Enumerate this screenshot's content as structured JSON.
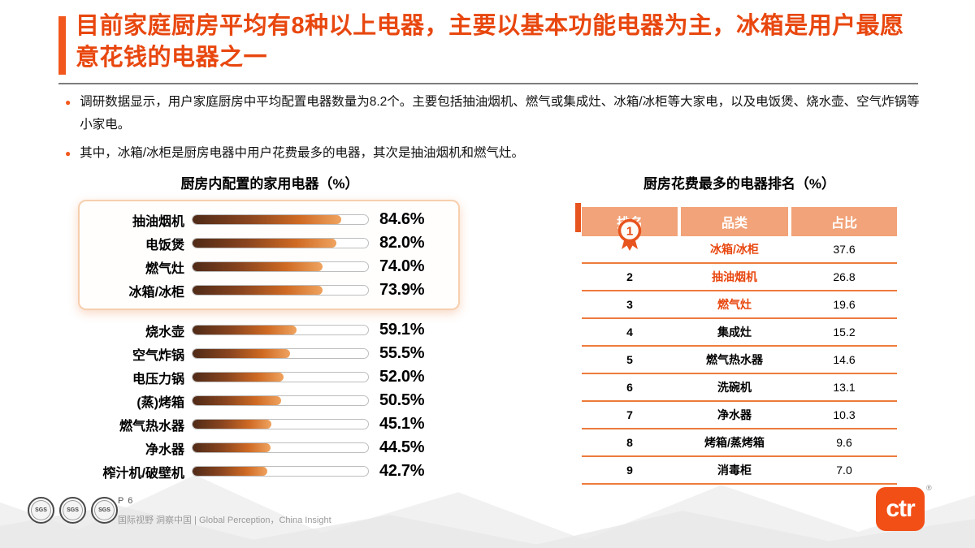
{
  "colors": {
    "accent_orange": "#F2581E",
    "title_color": "#E8470F",
    "table_header_bg": "#F2A379",
    "table_row_border": "#ED7B3C",
    "bar_gradient_start": "#4F2A17",
    "bar_gradient_end": "#EFA35F"
  },
  "header": {
    "title": "目前家庭厨房平均有8种以上电器，主要以基本功能电器为主，冰箱是用户最愿意花钱的电器之一"
  },
  "bullets": [
    "调研数据显示，用户家庭厨房中平均配置电器数量为8.2个。主要包括抽油烟机、燃气或集成灶、冰箱/冰柜等大家电，以及电饭煲、烧水壶、空气炸锅等小家电。",
    "其中，冰箱/冰柜是厨房电器中用户花费最多的电器，其次是抽油烟机和燃气灶。"
  ],
  "chart_data": [
    {
      "type": "bar",
      "orientation": "horizontal",
      "title": "厨房内配置的家用电器（%）",
      "categories": [
        "抽油烟机",
        "电饭煲",
        "燃气灶",
        "冰箱/冰柜",
        "烧水壶",
        "空气炸锅",
        "电压力锅",
        "(蒸)烤箱",
        "燃气热水器",
        "净水器",
        "榨汁机/破壁机"
      ],
      "values": [
        84.6,
        82.0,
        74.0,
        73.9,
        59.1,
        55.5,
        52.0,
        50.5,
        45.1,
        44.5,
        42.7
      ],
      "value_suffix": "%",
      "highlight_count": 4,
      "xlim": [
        0,
        100
      ],
      "grid": false
    },
    {
      "type": "table",
      "title": "厨房花费最多的电器排名（%）",
      "columns": [
        "排名",
        "品类",
        "占比"
      ],
      "rows": [
        [
          "1",
          "冰箱/冰柜",
          "37.6"
        ],
        [
          "2",
          "抽油烟机",
          "26.8"
        ],
        [
          "3",
          "燃气灶",
          "19.6"
        ],
        [
          "4",
          "集成灶",
          "15.2"
        ],
        [
          "5",
          "燃气热水器",
          "14.6"
        ],
        [
          "6",
          "洗碗机",
          "13.1"
        ],
        [
          "7",
          "净水器",
          "10.3"
        ],
        [
          "8",
          "烤箱/蒸烤箱",
          "9.6"
        ],
        [
          "9",
          "消毒柜",
          "7.0"
        ]
      ],
      "highlight_top": 3,
      "rank1_badge": "medal-1-icon"
    }
  ],
  "footer": {
    "seals": [
      "SGS",
      "SGS",
      "SGS"
    ],
    "page_number": "P 6",
    "tagline": "国际视野 洞察中国 | Global Perception，China Insight",
    "logo_text": "ctr",
    "registered_mark": "®"
  }
}
